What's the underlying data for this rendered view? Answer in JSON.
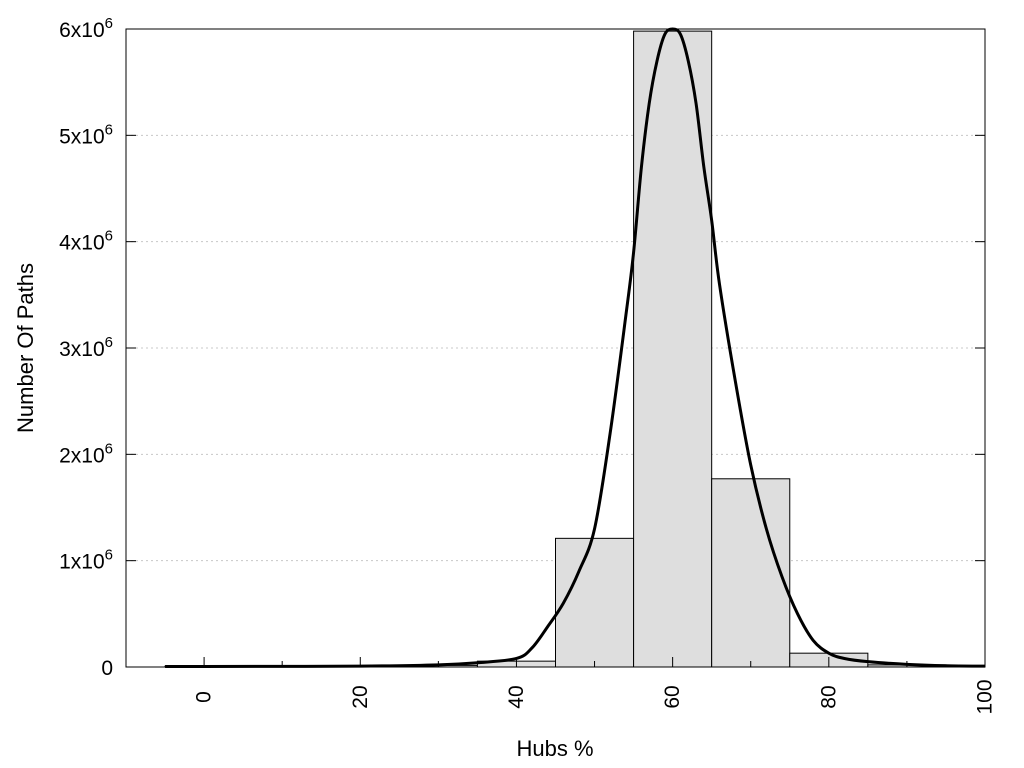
{
  "chart_data": {
    "type": "bar",
    "title": "",
    "xlabel": "Hubs %",
    "ylabel": "Number Of Paths",
    "xlim": [
      -10,
      100
    ],
    "ylim": [
      0,
      6000000
    ],
    "x_ticks": [
      0,
      20,
      40,
      60,
      80,
      100
    ],
    "y_ticks": [
      {
        "value": 0,
        "base": "0",
        "exp": ""
      },
      {
        "value": 1000000,
        "base": "1x10",
        "exp": "6"
      },
      {
        "value": 2000000,
        "base": "2x10",
        "exp": "6"
      },
      {
        "value": 3000000,
        "base": "3x10",
        "exp": "6"
      },
      {
        "value": 4000000,
        "base": "4x10",
        "exp": "6"
      },
      {
        "value": 5000000,
        "base": "5x10",
        "exp": "6"
      },
      {
        "value": 6000000,
        "base": "6x10",
        "exp": "6"
      }
    ],
    "grid": true,
    "bin_width": 10,
    "bars": [
      {
        "x": 0,
        "value": 8000
      },
      {
        "x": 10,
        "value": 9000
      },
      {
        "x": 20,
        "value": 7000
      },
      {
        "x": 30,
        "value": 15000
      },
      {
        "x": 40,
        "value": 55000
      },
      {
        "x": 50,
        "value": 1210000
      },
      {
        "x": 60,
        "value": 5980000
      },
      {
        "x": 70,
        "value": 1770000
      },
      {
        "x": 80,
        "value": 130000
      },
      {
        "x": 90,
        "value": 20000
      }
    ],
    "fit_curve": {
      "x": [
        -5,
        0,
        10,
        20,
        30,
        35,
        40,
        42,
        44,
        46,
        48,
        50,
        52,
        54,
        55,
        56,
        57,
        58,
        59,
        60,
        61,
        62,
        63,
        64,
        65,
        66,
        68,
        70,
        72,
        74,
        76,
        78,
        80,
        82,
        85,
        90,
        95,
        100
      ],
      "y": [
        5000,
        5000,
        6000,
        8000,
        20000,
        40000,
        80000,
        180000,
        380000,
        600000,
        900000,
        1300000,
        2200000,
        3300000,
        3900000,
        4700000,
        5300000,
        5700000,
        5950000,
        6000000,
        5950000,
        5700000,
        5300000,
        4700000,
        4200000,
        3600000,
        2700000,
        1900000,
        1300000,
        850000,
        500000,
        250000,
        130000,
        80000,
        50000,
        25000,
        12000,
        8000
      ]
    },
    "colors": {
      "bar_fill": "#dedede",
      "bar_stroke": "#000000",
      "curve": "#000000"
    }
  }
}
